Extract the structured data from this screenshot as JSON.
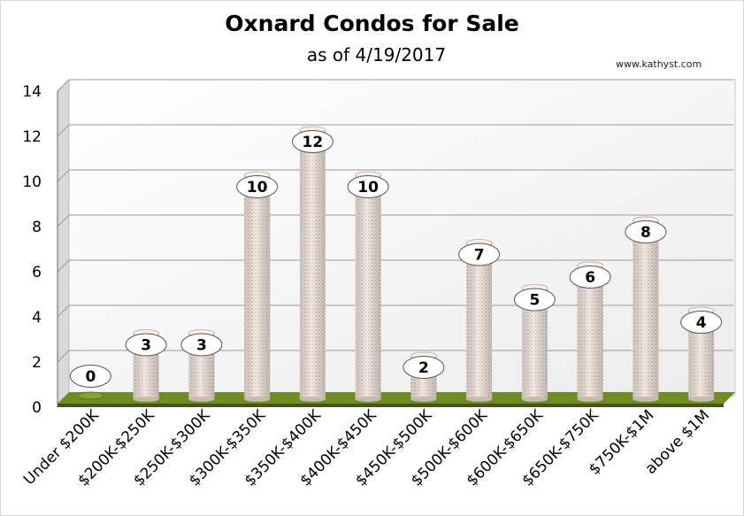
{
  "chart_data": {
    "type": "bar",
    "title": "Oxnard Condos for Sale",
    "subtitle": "as of 4/19/2017",
    "watermark": "www.kathyst.com",
    "categories": [
      "Under $200K",
      "$200K-$250K",
      "$250K-$300K",
      "$300K-$350K",
      "$350K-$400K",
      "$400K-$450K",
      "$450K-$500K",
      "$500K-$600K",
      "$600K-$650K",
      "$650K-$750K",
      "$750K-$1M",
      "above $1M"
    ],
    "values": [
      0,
      3,
      3,
      10,
      12,
      10,
      2,
      7,
      5,
      6,
      8,
      4
    ],
    "ylim": [
      0,
      14
    ],
    "yticks": [
      0,
      2,
      4,
      6,
      8,
      10,
      12,
      14
    ],
    "grid": true,
    "legend": "none",
    "colors": {
      "bar_fill": "#f3e6dc",
      "bar_dots": "#a07c74",
      "floor": "#5a7a1c",
      "wall": "#f0f0f0",
      "grid": "#999999"
    }
  }
}
